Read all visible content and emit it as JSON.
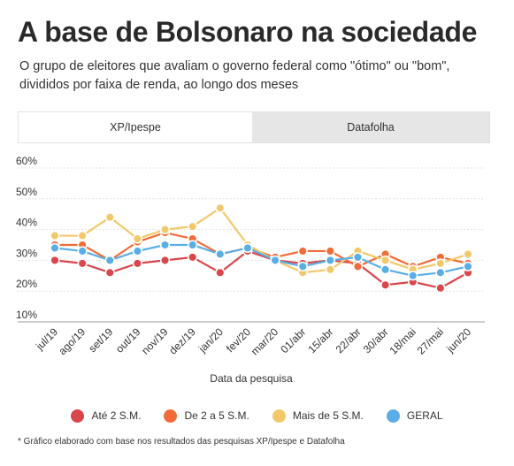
{
  "header": {
    "title": "A base de Bolsonaro na sociedade",
    "subtitle": "O grupo de eleitores que avaliam o governo federal como \"ótimo\" ou \"bom\", divididos por faixa de renda, ao longo dos meses"
  },
  "tabs": [
    {
      "label": "XP/Ipespe",
      "active": true
    },
    {
      "label": "Datafolha",
      "active": false
    }
  ],
  "footnote": "* Gráfico elaborado com base nos resultados das pesquisas XP/Ipespe e Datafolha",
  "chart_data": {
    "type": "line",
    "title": "",
    "xlabel": "Data da pesquisa",
    "ylabel": "",
    "ylim": [
      10,
      60
    ],
    "yticks": [
      10,
      20,
      30,
      40,
      50,
      60
    ],
    "ytick_labels": [
      "10%",
      "20%",
      "30%",
      "40%",
      "50%",
      "60%"
    ],
    "grid": true,
    "legend_position": "bottom",
    "categories": [
      "jul/19",
      "ago/19",
      "set/19",
      "out/19",
      "nov/19",
      "dez/19",
      "jan/20",
      "fev/20",
      "mar/20",
      "01/abr",
      "15/abr",
      "22/abr",
      "30/abr",
      "18/mai",
      "27/mai",
      "jun/20"
    ],
    "series": [
      {
        "name": "Até 2 S.M.",
        "color": "#d9464b",
        "values": [
          30,
          29,
          26,
          29,
          30,
          31,
          26,
          33,
          30,
          29,
          30,
          29,
          22,
          23,
          21,
          26
        ]
      },
      {
        "name": "De 2 a 5 S.M.",
        "color": "#f26b38",
        "values": [
          35,
          35,
          30,
          36,
          39,
          37,
          32,
          34,
          31,
          33,
          33,
          28,
          32,
          28,
          31,
          29
        ]
      },
      {
        "name": "Mais de 5 S.M.",
        "color": "#f2c86b",
        "values": [
          38,
          38,
          44,
          37,
          40,
          41,
          47,
          35,
          30,
          26,
          27,
          33,
          30,
          27,
          29,
          32
        ]
      },
      {
        "name": "GERAL",
        "color": "#5aaee6",
        "values": [
          34,
          33,
          30,
          33,
          35,
          35,
          32,
          34,
          30,
          28,
          30,
          31,
          27,
          25,
          26,
          28
        ]
      }
    ]
  }
}
